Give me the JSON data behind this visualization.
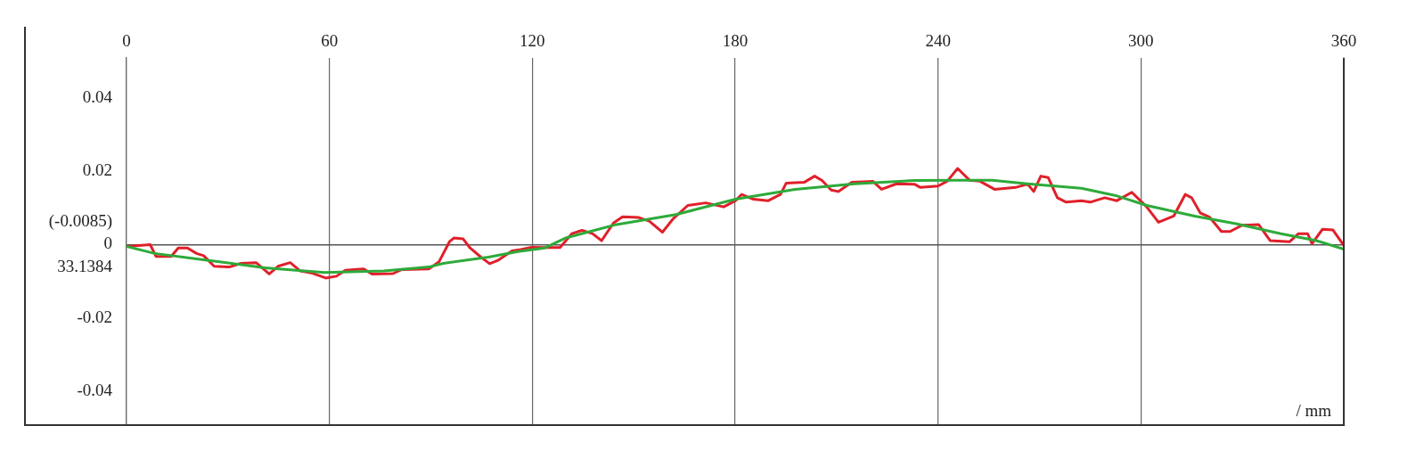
{
  "chart_data": {
    "type": "line",
    "xlabel": "/ mm",
    "xlim": [
      0,
      360
    ],
    "xticks": [
      0,
      60,
      120,
      180,
      240,
      300,
      360
    ],
    "ylim": [
      -0.049,
      0.051
    ],
    "yticks": [
      -0.04,
      -0.02,
      {
        "value": 0,
        "label": "(-0.0085)\n0\n33.1384"
      },
      0.02,
      0.04
    ],
    "grid": true,
    "legend": false,
    "marker": "none",
    "line_style": "solid",
    "series": [
      {
        "color": "#2eaa3a",
        "x": [
          0,
          8.3,
          23.3,
          40.9,
          58.5,
          76.1,
          89.4,
          93.7,
          107,
          115.8,
          123.7,
          130.1,
          144.9,
          162.5,
          180.1,
          197.7,
          215.3,
          233,
          245.5,
          256,
          266.5,
          282.4,
          292.9,
          301.7,
          315.9,
          328.1,
          341.4,
          351.9,
          360
        ],
        "values": [
          -0.0005,
          -0.0024,
          -0.0042,
          -0.0063,
          -0.0076,
          -0.0072,
          -0.0061,
          -0.0051,
          -0.0034,
          -0.0019,
          -0.0009,
          0.0019,
          0.0055,
          0.0082,
          0.0124,
          0.0151,
          0.0166,
          0.0175,
          0.0176,
          0.0176,
          0.0166,
          0.0154,
          0.0133,
          0.0107,
          0.0078,
          0.0057,
          0.003,
          0.0011,
          -0.0012
        ]
      },
      {
        "color": "#e0202a",
        "x": [
          0,
          7,
          8.7,
          13.2,
          15.3,
          18,
          20.7,
          22.8,
          25.9,
          30.4,
          33.8,
          38.3,
          42.2,
          44.8,
          48.4,
          51.4,
          55,
          58.9,
          62.1,
          64.7,
          70,
          72.6,
          78.8,
          81.4,
          89.4,
          92.4,
          95.5,
          96.8,
          99.5,
          101.6,
          104.8,
          107.4,
          110,
          114,
          116.6,
          119.8,
          123,
          128.2,
          131.7,
          134.7,
          137.8,
          140.5,
          144,
          146.7,
          151.5,
          154.6,
          158.5,
          161.6,
          166,
          171.3,
          176.6,
          180.1,
          181.9,
          185.4,
          189.8,
          193.4,
          195.1,
          200.4,
          203.5,
          205.7,
          208.4,
          210.5,
          214.5,
          220.7,
          223.3,
          227.7,
          233,
          234.8,
          240,
          242.7,
          245.8,
          249.3,
          252.4,
          256.7,
          262.9,
          266.5,
          268.3,
          270.4,
          272.6,
          275.3,
          277.9,
          282.4,
          285,
          289.3,
          292.9,
          297.3,
          301.7,
          305.2,
          309.7,
          313.1,
          315,
          317.6,
          320.2,
          323.8,
          326.4,
          329.9,
          334.8,
          338.2,
          344,
          346.6,
          349.3,
          350.6,
          353.7,
          356.8,
          360
        ],
        "values": [
          -0.0005,
          0,
          -0.0032,
          -0.0032,
          -0.0009,
          -0.0009,
          -0.0024,
          -0.003,
          -0.0059,
          -0.0061,
          -0.0051,
          -0.0049,
          -0.008,
          -0.0059,
          -0.0049,
          -0.0072,
          -0.0078,
          -0.0091,
          -0.0086,
          -0.007,
          -0.0066,
          -0.008,
          -0.0079,
          -0.0068,
          -0.0066,
          -0.0047,
          0.0008,
          0.0018,
          0.0016,
          -0.0009,
          -0.0034,
          -0.0052,
          -0.0042,
          -0.0017,
          -0.0013,
          -0.0007,
          -0.0008,
          -0.0008,
          0.003,
          0.0039,
          0.003,
          0.0011,
          0.0059,
          0.0076,
          0.0074,
          0.0064,
          0.0034,
          0.007,
          0.0107,
          0.0114,
          0.0103,
          0.012,
          0.0137,
          0.0124,
          0.012,
          0.0137,
          0.0168,
          0.017,
          0.0187,
          0.0175,
          0.0149,
          0.0145,
          0.017,
          0.0173,
          0.0151,
          0.0166,
          0.0165,
          0.0156,
          0.016,
          0.0173,
          0.0208,
          0.0176,
          0.0173,
          0.0151,
          0.0156,
          0.0165,
          0.0145,
          0.0187,
          0.0183,
          0.0128,
          0.0116,
          0.012,
          0.0116,
          0.0128,
          0.012,
          0.0143,
          0.0103,
          0.0061,
          0.0078,
          0.0137,
          0.0128,
          0.0086,
          0.0076,
          0.0036,
          0.0036,
          0.0053,
          0.0055,
          0.0011,
          0.0008,
          0.003,
          0.003,
          0.0003,
          0.0042,
          0.004,
          -0.0002
        ]
      }
    ]
  }
}
